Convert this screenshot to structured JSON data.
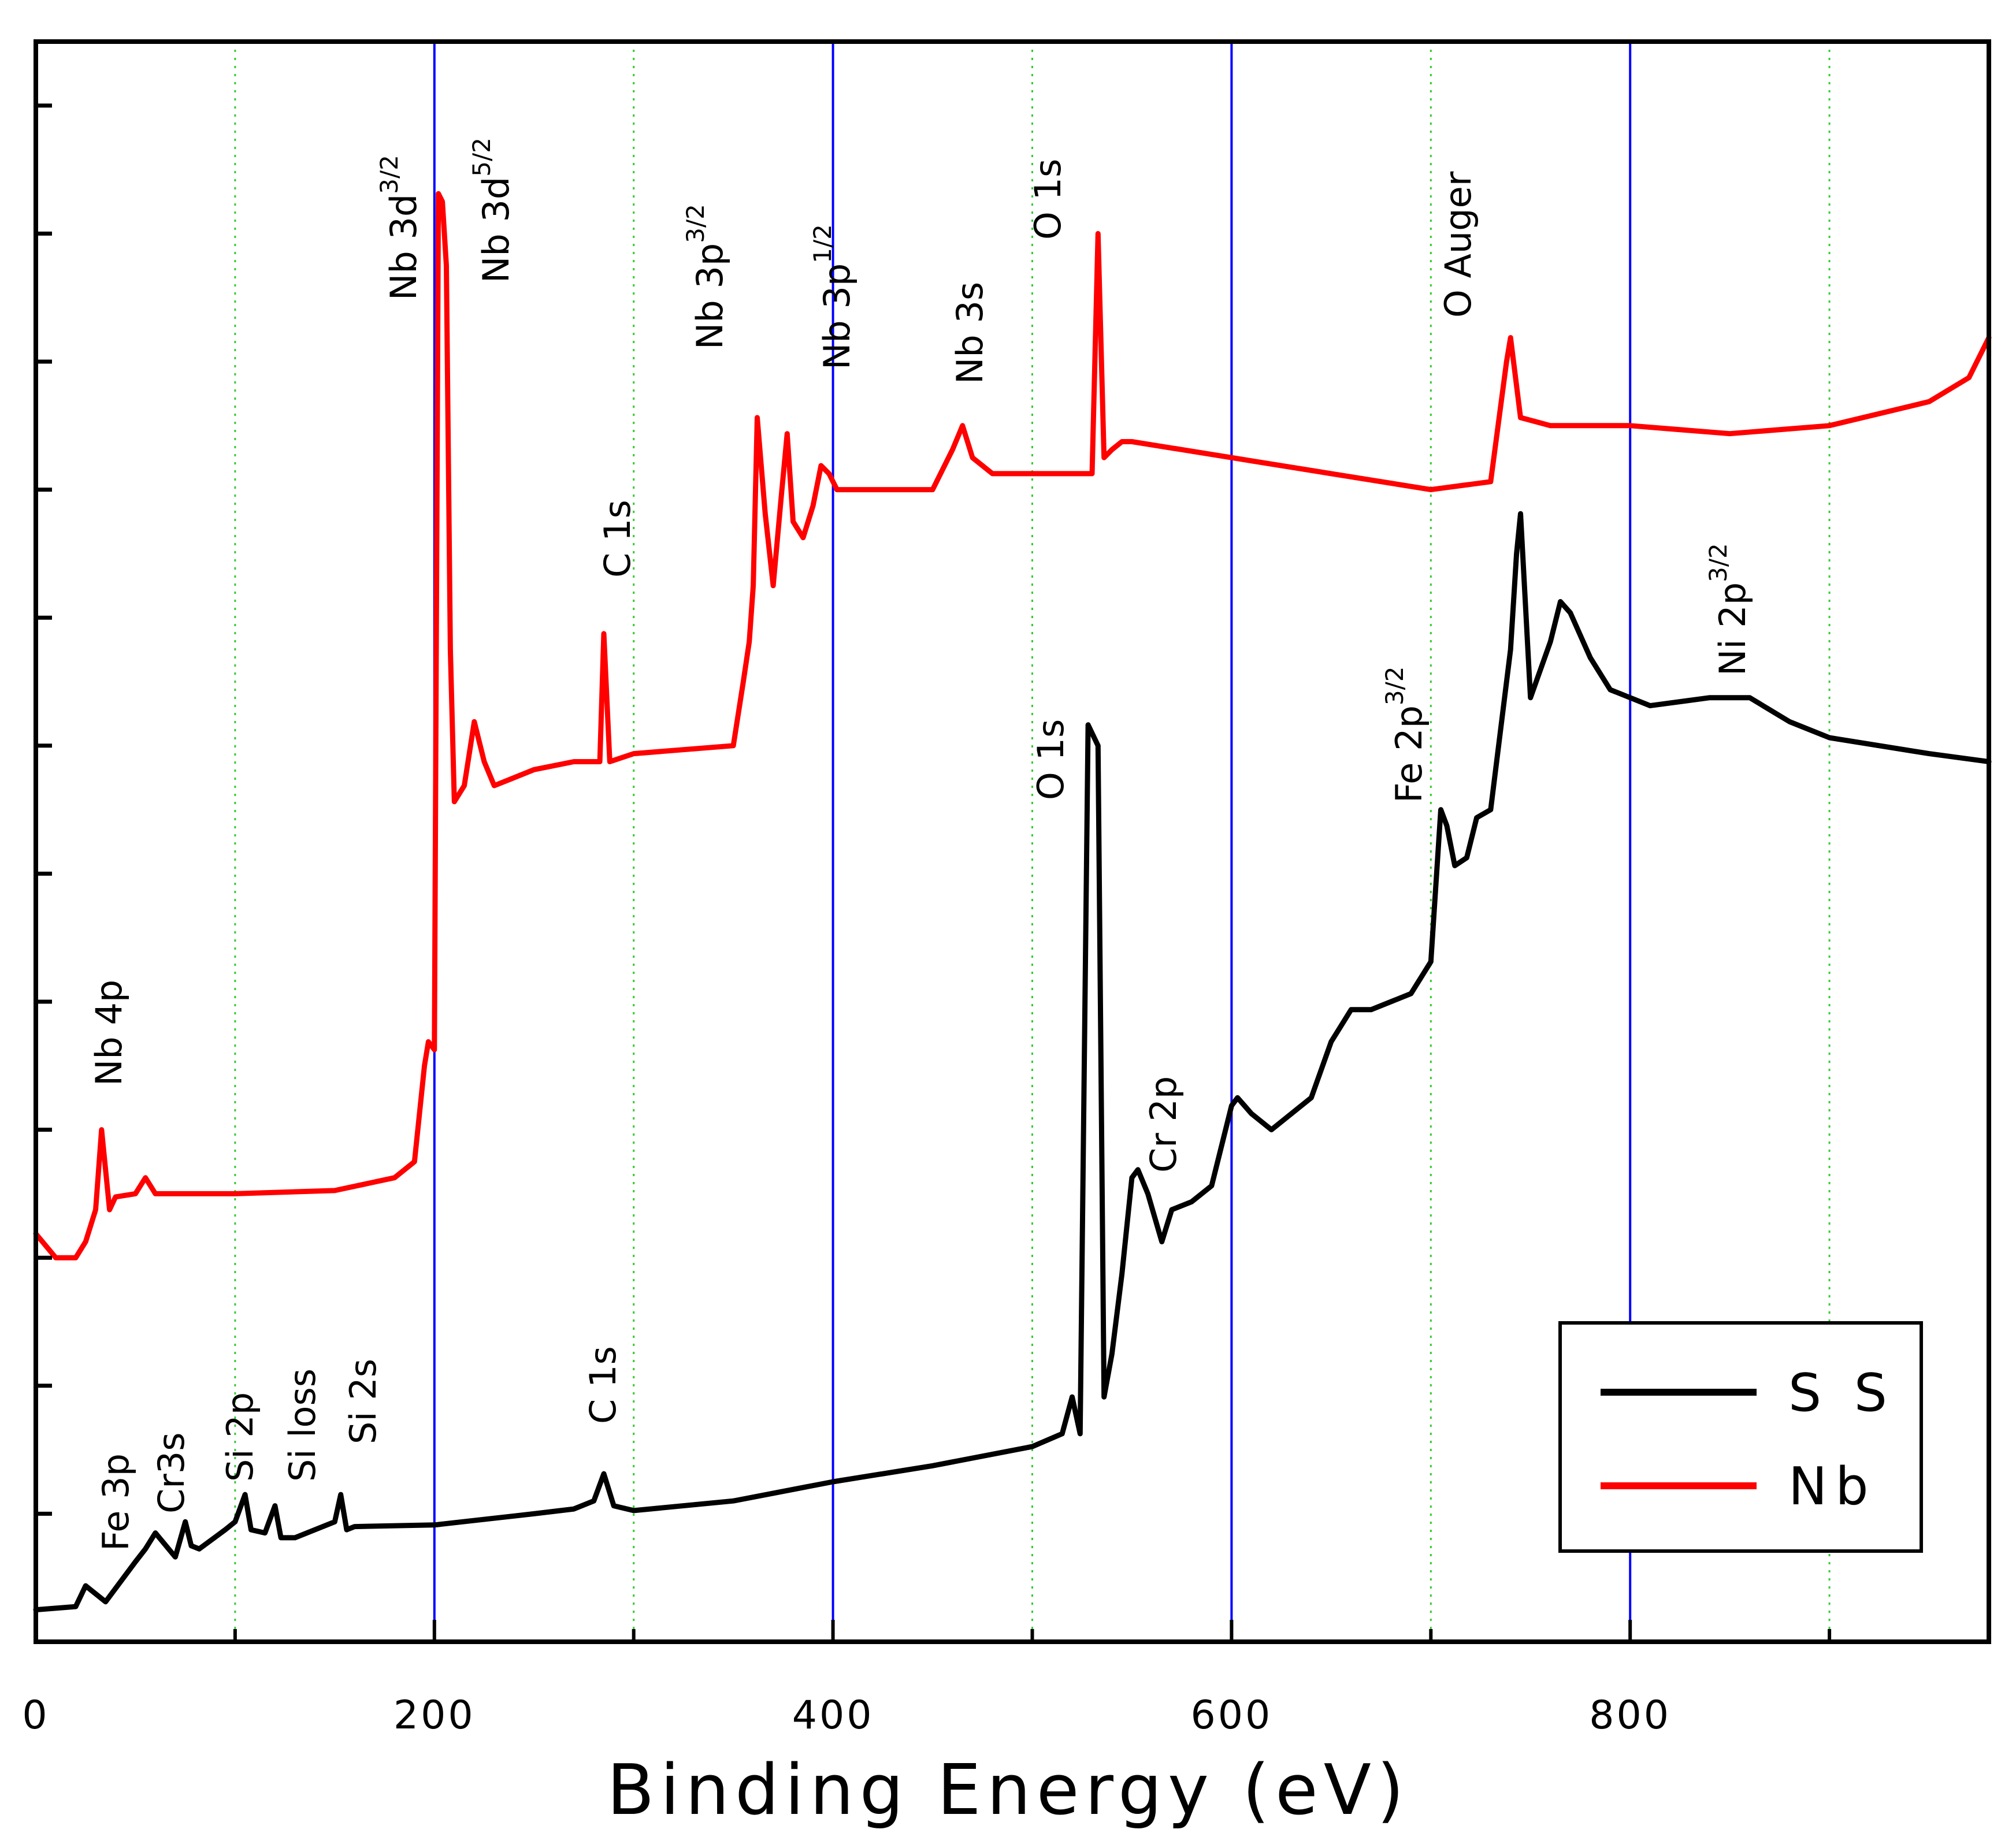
{
  "chart_data": {
    "type": "line",
    "xlabel": "Binding Energy (eV)",
    "ylabel": "",
    "xlim": [
      0,
      980
    ],
    "ylim": [
      0,
      100
    ],
    "xticks": [
      0,
      200,
      400,
      600,
      800
    ],
    "minor_gridlines_x": [
      100,
      300,
      500,
      700,
      900
    ],
    "major_gridlines_x": [
      200,
      400,
      600,
      800
    ],
    "legend_position": "bottom-right",
    "series": [
      {
        "name": "S S",
        "color": "#000000",
        "x": [
          0,
          20,
          25,
          35,
          50,
          55,
          60,
          70,
          75,
          78,
          82,
          95,
          100,
          105,
          108,
          115,
          120,
          123,
          130,
          150,
          153,
          156,
          160,
          200,
          250,
          270,
          280,
          285,
          290,
          300,
          350,
          400,
          450,
          500,
          515,
          520,
          524,
          528,
          533,
          536,
          540,
          545,
          550,
          553,
          558,
          565,
          570,
          580,
          590,
          600,
          603,
          610,
          620,
          640,
          650,
          660,
          670,
          690,
          700,
          705,
          708,
          712,
          718,
          723,
          730,
          740,
          743,
          745,
          750,
          760,
          765,
          770,
          780,
          790,
          810,
          840,
          860,
          880,
          900,
          950,
          980
        ],
        "y": [
          2.0,
          2.2,
          3.5,
          2.5,
          5.0,
          5.8,
          6.8,
          5.3,
          7.5,
          6.0,
          5.8,
          7.0,
          7.5,
          9.2,
          7.0,
          6.8,
          8.5,
          6.5,
          6.5,
          7.5,
          9.2,
          7.0,
          7.2,
          7.3,
          8.0,
          8.3,
          8.8,
          10.5,
          8.5,
          8.2,
          8.8,
          10.0,
          11.0,
          12.2,
          13.0,
          15.3,
          13.0,
          57.3,
          56.0,
          15.3,
          18.0,
          23.0,
          29.0,
          29.5,
          28.0,
          25.0,
          27.0,
          27.5,
          28.5,
          33.5,
          34.0,
          33.0,
          32.0,
          34.0,
          37.5,
          39.5,
          39.5,
          40.5,
          42.5,
          52.0,
          51.0,
          48.5,
          49.0,
          51.5,
          52.0,
          62.0,
          68.0,
          70.5,
          59.0,
          62.5,
          65.0,
          64.3,
          61.5,
          59.5,
          58.5,
          59.0,
          59.0,
          57.5,
          56.5,
          55.5,
          55.0
        ]
      },
      {
        "name": "Nb",
        "color": "#ff0000",
        "x": [
          0,
          10,
          20,
          25,
          30,
          33,
          37,
          40,
          50,
          55,
          60,
          80,
          100,
          150,
          180,
          190,
          195,
          197,
          200,
          202,
          204,
          206,
          208,
          210,
          215,
          220,
          225,
          230,
          240,
          250,
          270,
          283,
          285,
          288,
          300,
          350,
          355,
          358,
          360,
          362,
          366,
          370,
          374,
          377,
          380,
          385,
          390,
          394,
          398,
          402,
          410,
          450,
          460,
          465,
          470,
          480,
          500,
          530,
          533,
          536,
          540,
          545,
          550,
          600,
          650,
          700,
          730,
          738,
          740,
          745,
          760,
          800,
          850,
          900,
          950,
          970,
          980
        ],
        "y": [
          25.5,
          24.0,
          24.0,
          25.0,
          27.0,
          32.0,
          27.0,
          27.8,
          28.0,
          29.0,
          28.0,
          28.0,
          28.0,
          28.2,
          29.0,
          30.0,
          36.0,
          37.5,
          37.0,
          90.5,
          90.0,
          86.0,
          62.0,
          52.5,
          53.5,
          57.5,
          55.0,
          53.5,
          54.0,
          54.5,
          55.0,
          55.0,
          63.0,
          55.0,
          55.5,
          56.0,
          60.0,
          62.5,
          66.0,
          76.5,
          70.5,
          66.0,
          71.5,
          75.5,
          70.0,
          69.0,
          71.0,
          73.5,
          73.0,
          72.0,
          72.0,
          72.0,
          74.5,
          76.0,
          74.0,
          73.0,
          73.0,
          73.0,
          88.0,
          74.0,
          74.5,
          75.0,
          75.0,
          74.0,
          73.0,
          72.0,
          72.5,
          80.0,
          81.5,
          76.5,
          76.0,
          76.0,
          75.5,
          76.0,
          77.5,
          79.0,
          81.5
        ]
      }
    ],
    "annotations": {
      "nb": [
        {
          "text": "Nb 4p",
          "sup": ""
        },
        {
          "text": "Nb 3d",
          "sup": "3/2"
        },
        {
          "text": "Nb 3d",
          "sup": "5/2"
        },
        {
          "text": "C 1s",
          "sup": ""
        },
        {
          "text": "Nb 3p",
          "sup": "3/2"
        },
        {
          "text": "Nb 3p",
          "sup": "1/2"
        },
        {
          "text": "Nb 3s",
          "sup": ""
        },
        {
          "text": "O 1s",
          "sup": ""
        },
        {
          "text": "O Auger",
          "sup": ""
        }
      ],
      "ss": [
        {
          "text": "Fe 3p",
          "sup": ""
        },
        {
          "text": "Cr3s",
          "sup": ""
        },
        {
          "text": "Si 2p",
          "sup": ""
        },
        {
          "text": "Si loss",
          "sup": ""
        },
        {
          "text": "Si 2s",
          "sup": ""
        },
        {
          "text": "C 1s",
          "sup": ""
        },
        {
          "text": "O 1s",
          "sup": ""
        },
        {
          "text": "Cr 2p",
          "sup": ""
        },
        {
          "text": "Fe 2p",
          "sup": "3/2"
        },
        {
          "text": "Ni 2p",
          "sup": "3/2"
        }
      ]
    }
  }
}
